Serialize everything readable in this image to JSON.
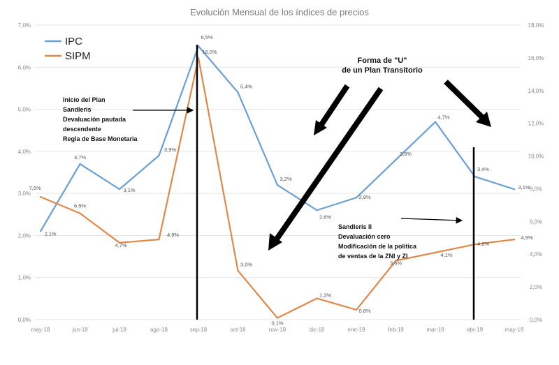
{
  "chart_data": {
    "type": "line",
    "title": "Evolución Mensual de los índices de precios",
    "categories": [
      "may-18",
      "jun-18",
      "jul-18",
      "ago-18",
      "sep-18",
      "oct-18",
      "nov-18",
      "dic-18",
      "ene-19",
      "feb-19",
      "mar-19",
      "abr-19",
      "may-19"
    ],
    "y_left": {
      "min": 0,
      "max": 7,
      "step": 1,
      "ticks": [
        "0,0%",
        "1,0%",
        "2,0%",
        "3,0%",
        "4,0%",
        "5,0%",
        "6,0%",
        "7,0%"
      ]
    },
    "y_right": {
      "min": 0,
      "max": 18,
      "step": 2,
      "ticks": [
        "0,0%",
        "2,0%",
        "4,0%",
        "6,0%",
        "8,0%",
        "10,0%",
        "12,0%",
        "14,0%",
        "16,0%",
        "18,0%"
      ]
    },
    "grid": true,
    "legend_position": "top-left",
    "series": [
      {
        "name": "IPC",
        "axis": "left",
        "color": "#6a9fd4",
        "values": [
          2.1,
          3.7,
          3.1,
          3.9,
          6.5,
          5.4,
          3.2,
          2.6,
          2.9,
          3.8,
          4.7,
          3.4,
          3.1
        ],
        "labels": [
          "2,1%",
          "3,7%",
          "3,1%",
          "3,9%",
          "6,5%",
          "5,4%",
          "3,2%",
          "2,6%",
          "2,9%",
          "3,8%",
          "4,7%",
          "3,4%",
          "3,1%"
        ]
      },
      {
        "name": "SIPM",
        "axis": "right",
        "color": "#e0884a",
        "values": [
          7.5,
          6.5,
          4.7,
          4.9,
          16.0,
          3.0,
          0.1,
          1.3,
          0.6,
          3.6,
          4.1,
          4.6,
          4.9
        ],
        "labels": [
          "7,5%",
          "6,5%",
          "4,7%",
          "4,9%",
          "16,0%",
          "3,0%",
          "0,1%",
          "1,3%",
          "0,6%",
          "3,6%",
          "4,1%",
          "4,6%",
          "4,9%"
        ]
      }
    ],
    "annotations": [
      {
        "lines": [
          "Inicio del Plan",
          "Sandleris",
          "Devaluación pautada",
          "descendente",
          "Regla de Base Monetaria"
        ]
      },
      {
        "lines": [
          "Forma de \"U\"",
          "de un Plan Transitorio"
        ]
      },
      {
        "lines": [
          "Sandleris II",
          "Devaluación cero",
          "Modificación de la política",
          "de ventas de la ZNI y ZI"
        ]
      }
    ]
  }
}
